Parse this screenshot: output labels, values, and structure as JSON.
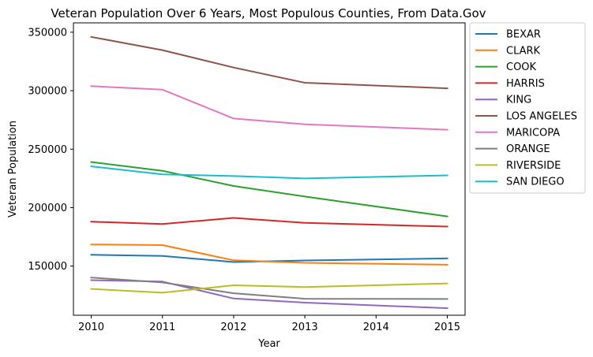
{
  "chart_data": {
    "type": "line",
    "title": "Veteran Population Over 6 Years, Most Populous Counties, From Data.Gov",
    "xlabel": "Year",
    "ylabel": "Veteran Population",
    "x": [
      2010,
      2011,
      2012,
      2013,
      2015
    ],
    "x_ticks": [
      2010,
      2011,
      2012,
      2013,
      2014,
      2015
    ],
    "x_tick_labels": [
      "2010",
      "2011",
      "2012",
      "2013",
      "2014",
      "2015"
    ],
    "xlim": [
      2009.75,
      2015.25
    ],
    "y_ticks": [
      150000,
      200000,
      250000,
      300000,
      350000
    ],
    "y_tick_labels": [
      "150000",
      "200000",
      "250000",
      "300000",
      "350000"
    ],
    "ylim": [
      108000,
      358000
    ],
    "grid": false,
    "legend_position": "outside upper right",
    "series": [
      {
        "name": "BEXAR",
        "color": "#1f77b4",
        "values": [
          159700,
          158700,
          153500,
          154800,
          156600
        ]
      },
      {
        "name": "CLARK",
        "color": "#ff7f0e",
        "values": [
          168500,
          168000,
          155000,
          152800,
          151200
        ]
      },
      {
        "name": "COOK",
        "color": "#2ca02c",
        "values": [
          239000,
          231500,
          218500,
          209500,
          192500
        ]
      },
      {
        "name": "HARRIS",
        "color": "#d62728",
        "values": [
          188000,
          186000,
          191200,
          187000,
          183800
        ]
      },
      {
        "name": "KING",
        "color": "#9467bd",
        "values": [
          138000,
          136800,
          122300,
          118800,
          114000
        ]
      },
      {
        "name": "LOS ANGELES",
        "color": "#8c564b",
        "values": [
          346000,
          334700,
          319800,
          306800,
          302000
        ]
      },
      {
        "name": "MARICOPA",
        "color": "#e377c2",
        "values": [
          303900,
          300900,
          276200,
          271300,
          266600
        ]
      },
      {
        "name": "ORANGE",
        "color": "#7f7f7f",
        "values": [
          140200,
          136000,
          126800,
          122100,
          121900
        ]
      },
      {
        "name": "RIVERSIDE",
        "color": "#bcbd22",
        "values": [
          130500,
          127300,
          133600,
          132100,
          135200
        ]
      },
      {
        "name": "SAN DIEGO",
        "color": "#17becf",
        "values": [
          235300,
          228500,
          227000,
          225000,
          227600
        ]
      }
    ]
  }
}
